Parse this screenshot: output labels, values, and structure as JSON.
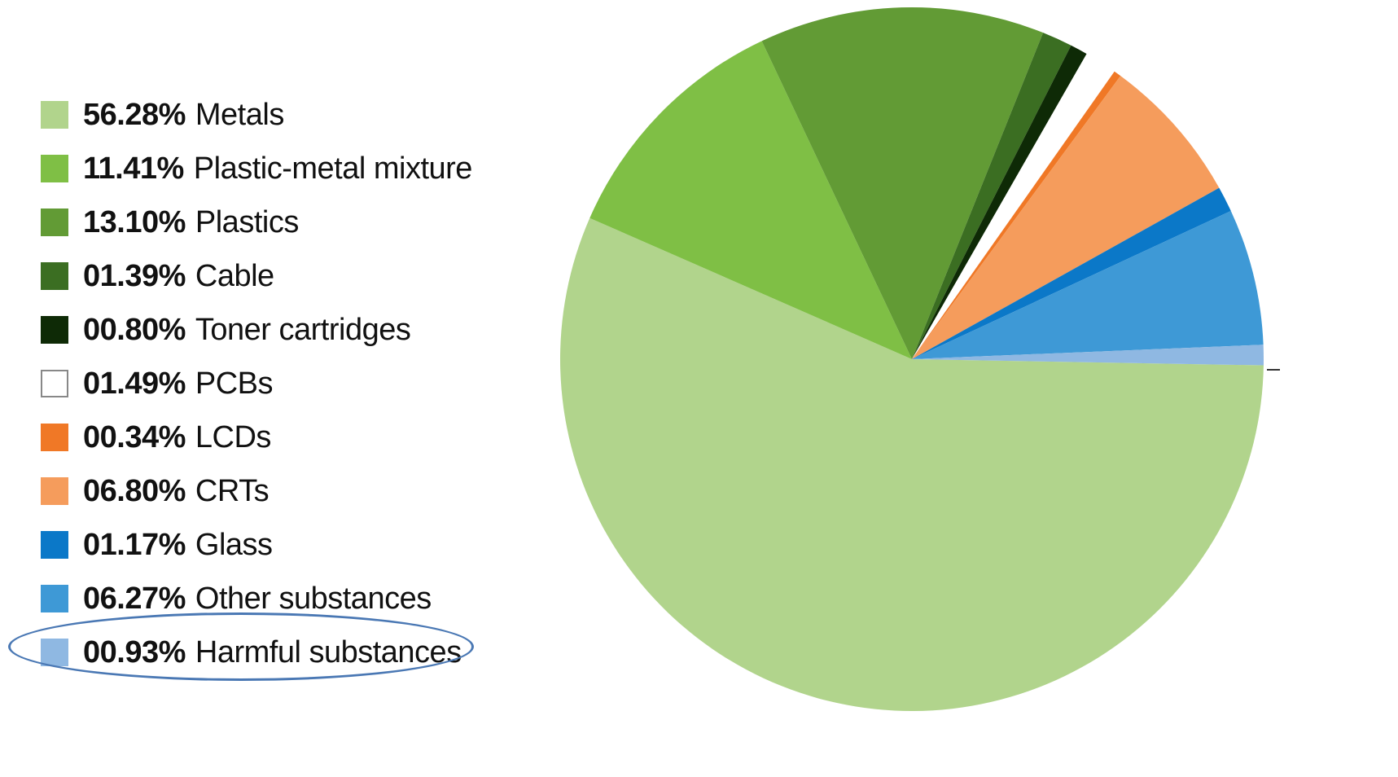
{
  "chart_data": {
    "type": "pie",
    "title": "",
    "slices": [
      {
        "pct_label": "56.28%",
        "label": "Metals",
        "value": 56.28,
        "color": "#b1d48c"
      },
      {
        "pct_label": "11.41%",
        "label": "Plastic-metal mixture",
        "value": 11.41,
        "color": "#7fbf45"
      },
      {
        "pct_label": "13.10%",
        "label": "Plastics",
        "value": 13.1,
        "color": "#629b35"
      },
      {
        "pct_label": "01.39%",
        "label": "Cable",
        "value": 1.39,
        "color": "#3b6e22"
      },
      {
        "pct_label": "00.80%",
        "label": "Toner cartridges",
        "value": 0.8,
        "color": "#0e2a06"
      },
      {
        "pct_label": "01.49%",
        "label": "PCBs",
        "value": 1.49,
        "color": "#ffffff",
        "border": "#888888"
      },
      {
        "pct_label": "00.34%",
        "label": "LCDs",
        "value": 0.34,
        "color": "#f07826"
      },
      {
        "pct_label": "06.80%",
        "label": "CRTs",
        "value": 6.8,
        "color": "#f59c5c"
      },
      {
        "pct_label": "01.17%",
        "label": "Glass",
        "value": 1.17,
        "color": "#0b78c8"
      },
      {
        "pct_label": "06.27%",
        "label": "Other substances",
        "value": 6.27,
        "color": "#3e99d6"
      },
      {
        "pct_label": "00.93%",
        "label": "Harmful substances",
        "value": 0.93,
        "color": "#8fb8e2"
      }
    ],
    "legend_position": "left",
    "highlighted": "Harmful substances",
    "highlight_color": "#4a78b4"
  }
}
